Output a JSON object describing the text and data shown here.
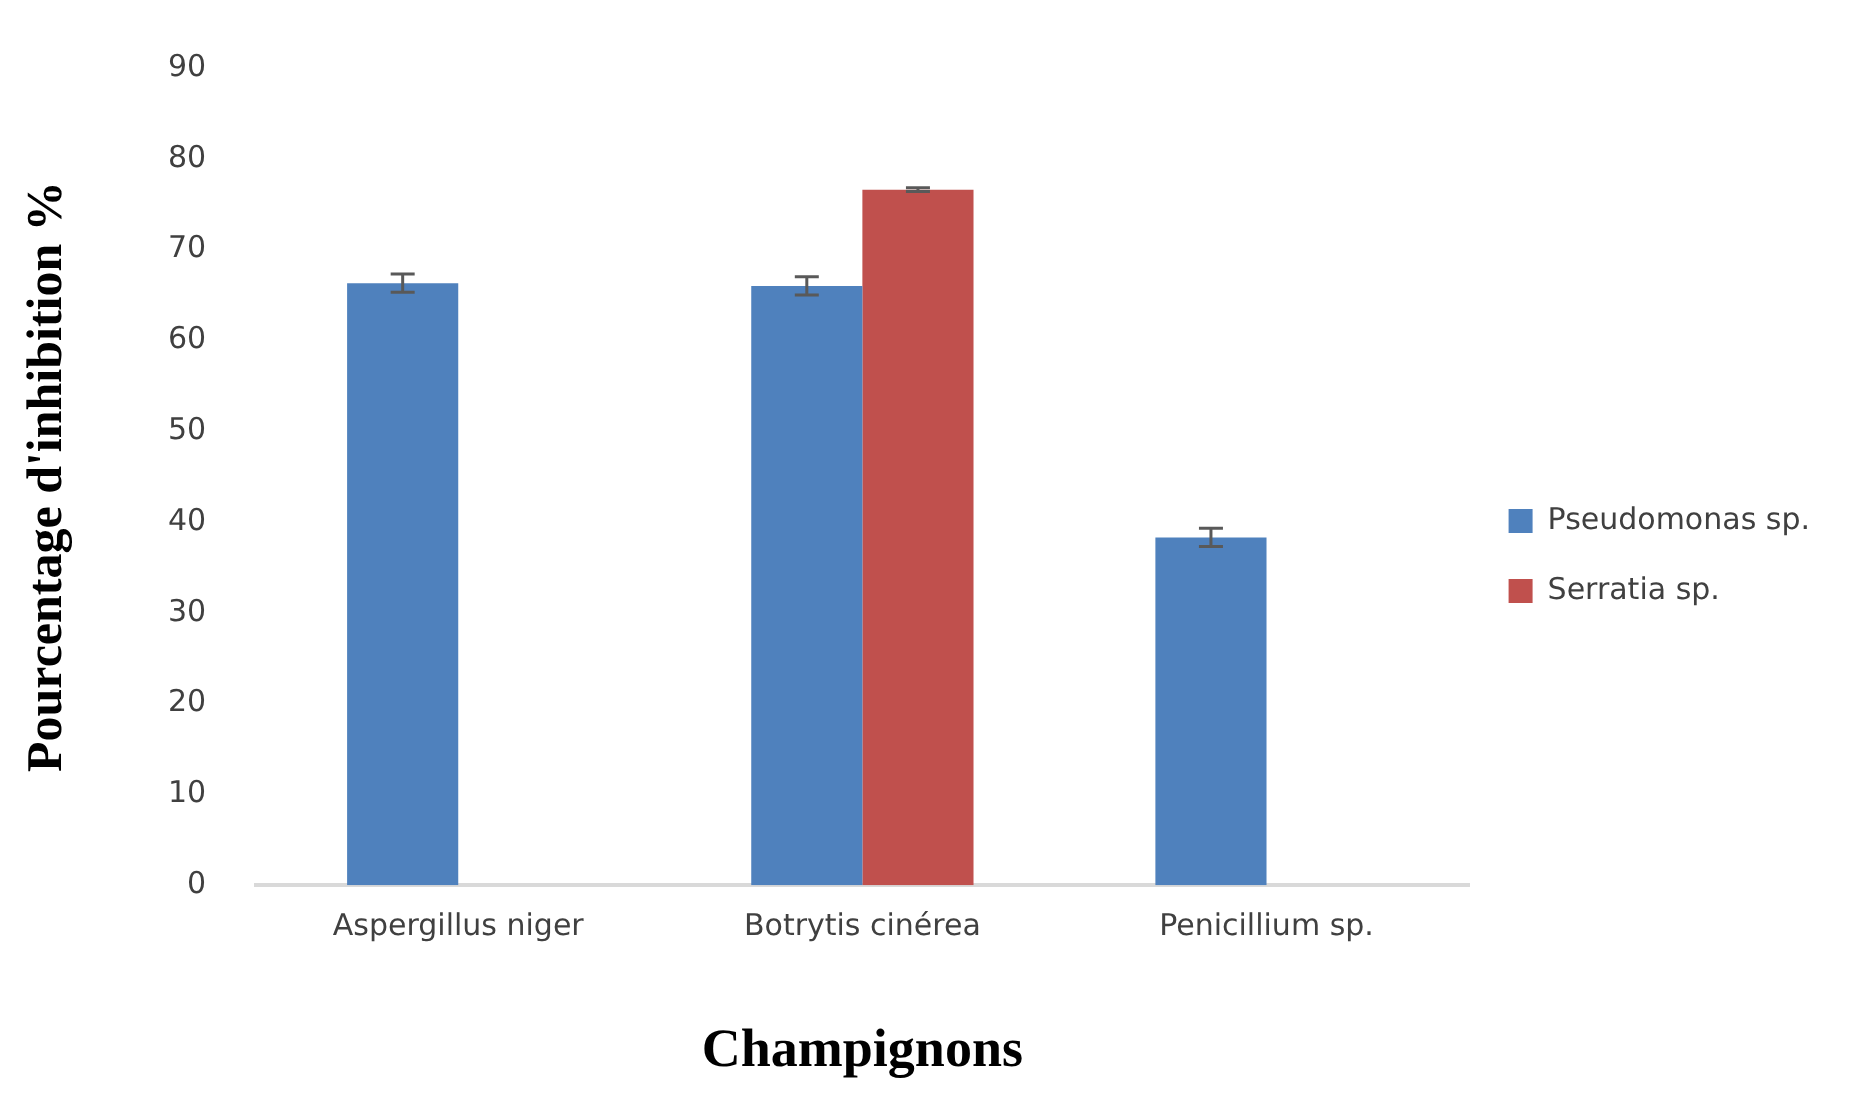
{
  "chart_data": {
    "type": "bar",
    "xlabel": "Champignons",
    "ylabel": "Pourcentage d'inhibition %",
    "categories": [
      "Aspergillus niger",
      "Botrytis cinérea",
      "Penicillium sp."
    ],
    "series": [
      {
        "name": "Pseudomonas sp.",
        "color": "#4f81bd",
        "values": [
          66.3,
          66,
          38.3
        ],
        "errors": [
          1,
          1,
          1
        ]
      },
      {
        "name": "Serratia sp.",
        "color": "#c0504d",
        "values": [
          0,
          76.6,
          0
        ],
        "errors": [
          null,
          0.2,
          null
        ]
      }
    ],
    "ylim": [
      0,
      90
    ],
    "yticks": [
      0,
      10,
      20,
      30,
      40,
      50,
      60,
      70,
      80,
      90
    ],
    "grid": false,
    "legend": "right"
  }
}
